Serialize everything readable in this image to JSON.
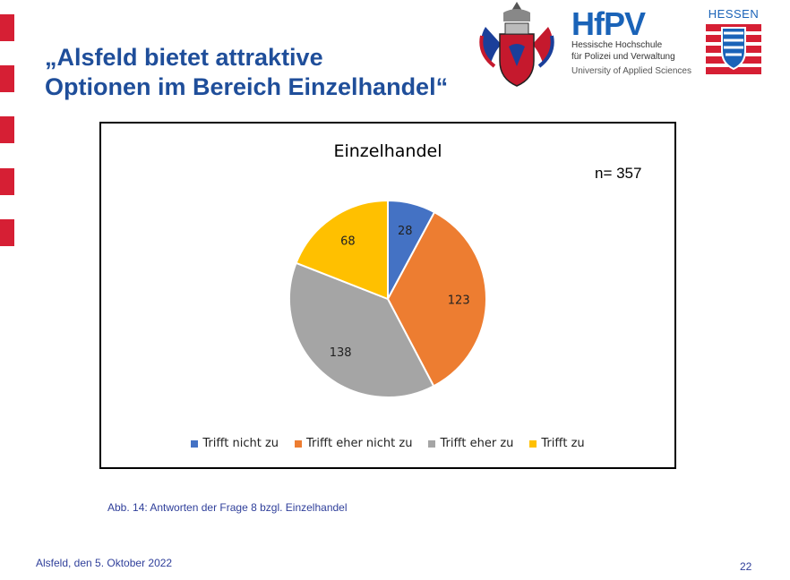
{
  "slide": {
    "title_line1": "„Alsfeld bietet attraktive",
    "title_line2": "Optionen im Bereich Einzelhandel“",
    "caption": "Abb. 14: Antworten der Frage 8 bzgl. Einzelhandel",
    "footer_date": "Alsfeld, den 5. Oktober 2022",
    "page_number": "22"
  },
  "logos": {
    "hpv_mark": "HfPV",
    "hpv_line1": "Hessische Hochschule",
    "hpv_line2": "für Polizei und Verwaltung",
    "hpv_line3": "University of Applied Sciences",
    "hessen_label": "HESSEN"
  },
  "colors": {
    "accent_red": "#d61f34",
    "title_blue": "#1f4e9a"
  },
  "chart_data": {
    "type": "pie",
    "title": "Einzelhandel",
    "annotation": "n= 357",
    "slices": [
      {
        "label": "Trifft nicht zu",
        "value": 28,
        "color": "#4472c4"
      },
      {
        "label": "Trifft eher nicht zu",
        "value": 123,
        "color": "#ed7d31"
      },
      {
        "label": "Trifft eher zu",
        "value": 138,
        "color": "#a5a5a5"
      },
      {
        "label": "Trifft zu",
        "value": 68,
        "color": "#ffc000"
      }
    ],
    "legend_position": "bottom"
  }
}
